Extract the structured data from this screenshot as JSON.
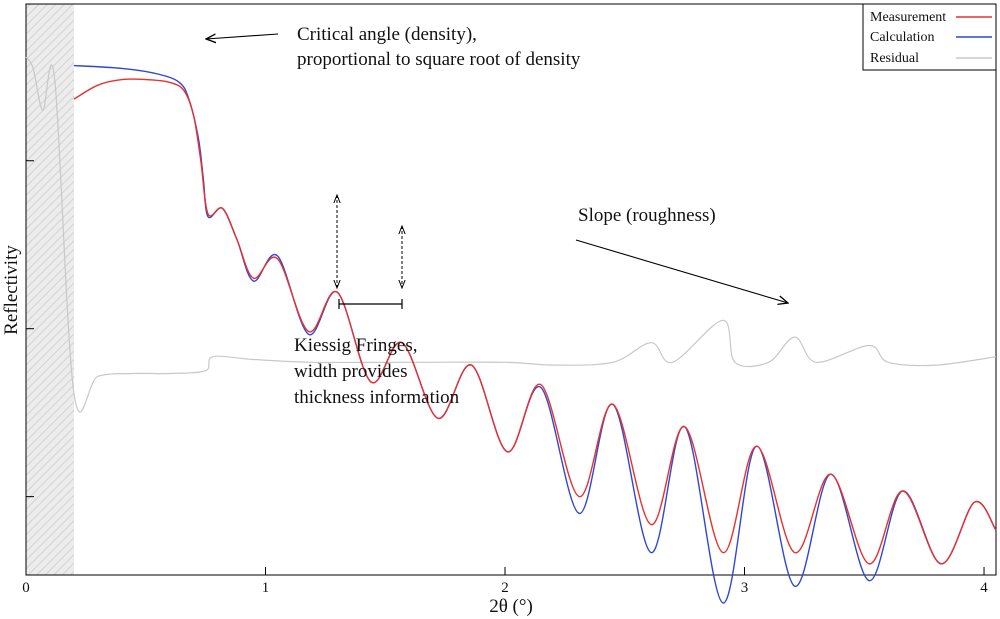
{
  "chart_data": {
    "type": "line",
    "title": "",
    "xlabel": "2θ (°)",
    "ylabel": "Reflectivity",
    "xlim": [
      0,
      4.05
    ],
    "ylim": [
      -9.4,
      0.8
    ],
    "yscale": "log10 (decades, unlabeled ticks)",
    "xticks": [
      0,
      1,
      2,
      3,
      4
    ],
    "xtick_labels": [
      "0",
      "1",
      "2",
      "3",
      "4"
    ],
    "yticks": [
      -8,
      -5,
      -2,
      1
    ],
    "shaded_region": [
      0,
      0.2
    ],
    "legend_position": "top-right",
    "colors": {
      "measurement": "#e8312c",
      "calculation": "#2f47d6",
      "residual": "#c8c8c8"
    },
    "series": [
      {
        "name": "Measurement",
        "color": "#e8312c",
        "x": [
          0.2,
          0.3,
          0.4,
          0.5,
          0.6,
          0.66,
          0.7,
          0.73,
          0.76,
          0.82,
          0.88,
          0.95,
          1.05,
          1.18,
          1.3,
          1.44,
          1.57,
          1.72,
          1.86,
          2.01,
          2.15,
          2.31,
          2.45,
          2.61,
          2.75,
          2.91,
          3.05,
          3.21,
          3.36,
          3.52,
          3.66,
          3.82,
          3.96,
          4.05
        ],
        "y": [
          -0.9,
          -0.65,
          -0.55,
          -0.55,
          -0.6,
          -0.75,
          -1.2,
          -2.0,
          -2.95,
          -2.85,
          -3.4,
          -4.1,
          -3.75,
          -5.05,
          -4.35,
          -5.95,
          -5.25,
          -6.6,
          -5.65,
          -7.2,
          -6.0,
          -8.0,
          -6.35,
          -8.5,
          -6.75,
          -9.0,
          -7.1,
          -9.0,
          -7.6,
          -9.2,
          -7.9,
          -9.2,
          -8.1,
          -8.6
        ]
      },
      {
        "name": "Calculation",
        "color": "#2f47d6",
        "x": [
          0.2,
          0.4,
          0.55,
          0.64,
          0.68,
          0.72,
          0.74,
          0.76,
          0.82,
          0.88,
          0.95,
          1.05,
          1.18,
          1.3,
          1.44,
          1.57,
          1.72,
          1.86,
          2.01,
          2.15,
          2.31,
          2.45,
          2.61,
          2.75,
          2.91,
          3.05,
          3.21,
          3.36,
          3.52,
          3.66,
          3.82,
          3.96,
          4.05
        ],
        "y": [
          -0.3,
          -0.35,
          -0.45,
          -0.6,
          -0.9,
          -1.6,
          -2.3,
          -3.0,
          -2.85,
          -3.4,
          -4.15,
          -3.7,
          -5.1,
          -4.35,
          -5.95,
          -5.25,
          -6.6,
          -5.65,
          -7.2,
          -6.05,
          -8.3,
          -6.35,
          -9.0,
          -6.75,
          -9.9,
          -7.1,
          -9.6,
          -7.6,
          -9.5,
          -7.9,
          -9.2,
          -8.1,
          -8.6
        ]
      },
      {
        "name": "Residual",
        "color": "#c8c8c8",
        "x": [
          0.0,
          0.03,
          0.07,
          0.12,
          0.2,
          0.3,
          0.45,
          0.6,
          0.75,
          0.78,
          0.95,
          1.2,
          1.6,
          2.0,
          2.2,
          2.45,
          2.61,
          2.7,
          2.91,
          2.96,
          3.1,
          3.21,
          3.3,
          3.52,
          3.6,
          3.8,
          4.05
        ],
        "y": [
          -0.15,
          -0.35,
          -1.1,
          -0.55,
          -6.15,
          -5.85,
          -5.8,
          -5.8,
          -5.75,
          -5.5,
          -5.55,
          -5.6,
          -5.6,
          -5.6,
          -5.65,
          -5.6,
          -5.25,
          -5.6,
          -4.85,
          -5.6,
          -5.6,
          -5.15,
          -5.6,
          -5.3,
          -5.6,
          -5.65,
          -5.5
        ]
      }
    ]
  },
  "annotations": {
    "critical_angle_line1": "Critical angle (density),",
    "critical_angle_line2": "proportional to square root of density",
    "slope": "Slope (roughness)",
    "kiessig_line1": "Kiessig Fringes,",
    "kiessig_line2": "width provides",
    "kiessig_line3": "thickness information"
  },
  "legend": {
    "measurement": "Measurement",
    "calculation": "Calculation",
    "residual": "Residual"
  }
}
